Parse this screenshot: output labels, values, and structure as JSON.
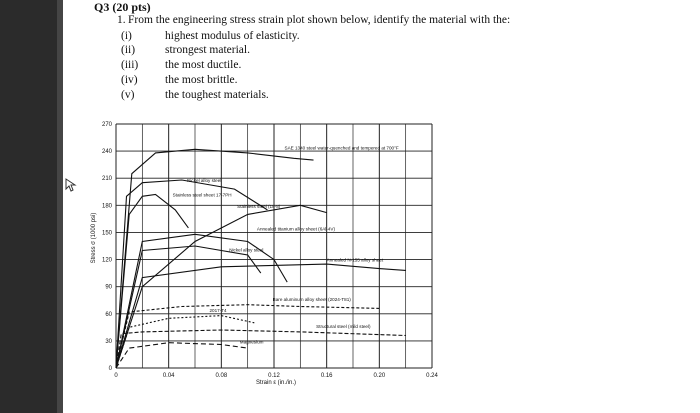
{
  "header": {
    "title": "Q3 (20 pts)"
  },
  "question": {
    "number": "1.",
    "text": "From the engineering stress strain plot shown below, identify the material with the:",
    "items": [
      {
        "roman": "(i)",
        "label": "highest modulus of elasticity."
      },
      {
        "roman": "(ii)",
        "label": "strongest material."
      },
      {
        "roman": "(iii)",
        "label": "the most ductile."
      },
      {
        "roman": "(iv)",
        "label": "the most brittle."
      },
      {
        "roman": "(v)",
        "label": "the toughest materials."
      }
    ]
  },
  "chart_data": {
    "type": "line",
    "title": "",
    "xlabel": "Strain ε (in./in.)",
    "ylabel": "Stress σ (1000 psi)",
    "xlim": [
      0,
      0.24
    ],
    "ylim": [
      0,
      270
    ],
    "x_ticks": [
      "0",
      "0.04",
      "0.08",
      "0.12",
      "0.16",
      "0.20",
      "0.24"
    ],
    "y_ticks": [
      "0",
      "30",
      "60",
      "90",
      "120",
      "150",
      "180",
      "210",
      "240",
      "270"
    ],
    "grid": true,
    "series": [
      {
        "name": "SAE 1340 steel water-quenched and tempered at 700°F",
        "x": [
          0,
          0.012,
          0.03,
          0.06,
          0.1,
          0.135,
          0.15
        ],
        "y": [
          0,
          215,
          238,
          242,
          238,
          232,
          230
        ]
      },
      {
        "name": "Nickel alloy steel",
        "x": [
          0,
          0.008,
          0.02,
          0.05,
          0.09,
          0.115
        ],
        "y": [
          0,
          190,
          205,
          208,
          198,
          175
        ]
      },
      {
        "name": "Stainless steel sheet 17-7PH",
        "x": [
          0,
          0.01,
          0.02,
          0.03,
          0.045,
          0.055
        ],
        "y": [
          0,
          170,
          190,
          192,
          175,
          155
        ]
      },
      {
        "name": "Stainless steel (18-8)",
        "x": [
          0,
          0.02,
          0.06,
          0.1,
          0.14,
          0.16
        ],
        "y": [
          0,
          90,
          140,
          170,
          180,
          172
        ]
      },
      {
        "name": "Annealed titanium alloy sheet (6Al-4V)",
        "x": [
          0,
          0.02,
          0.06,
          0.1,
          0.12,
          0.13
        ],
        "y": [
          0,
          140,
          148,
          140,
          120,
          95
        ]
      },
      {
        "name": "Nickel alloy steel",
        "x": [
          0,
          0.02,
          0.06,
          0.1,
          0.11
        ],
        "y": [
          0,
          130,
          135,
          125,
          105
        ]
      },
      {
        "name": "Annealed N-155 alloy sheet",
        "x": [
          0,
          0.02,
          0.08,
          0.16,
          0.2,
          0.22
        ],
        "y": [
          0,
          100,
          112,
          115,
          110,
          108
        ]
      },
      {
        "name": "Bare aluminum alloy sheet (2024-T81)",
        "x": [
          0,
          0.01,
          0.05,
          0.1,
          0.14,
          0.2
        ],
        "y": [
          0,
          62,
          68,
          70,
          68,
          66
        ]
      },
      {
        "name": "2017-T4",
        "x": [
          0,
          0.01,
          0.04,
          0.08,
          0.105
        ],
        "y": [
          0,
          45,
          55,
          58,
          50
        ]
      },
      {
        "name": "Structural steel (mild steel)",
        "x": [
          0,
          0.004,
          0.02,
          0.08,
          0.14,
          0.22
        ],
        "y": [
          0,
          38,
          40,
          42,
          40,
          36
        ]
      },
      {
        "name": "Magnesium",
        "x": [
          0,
          0.01,
          0.04,
          0.08,
          0.1
        ],
        "y": [
          0,
          22,
          28,
          26,
          22
        ]
      }
    ]
  }
}
